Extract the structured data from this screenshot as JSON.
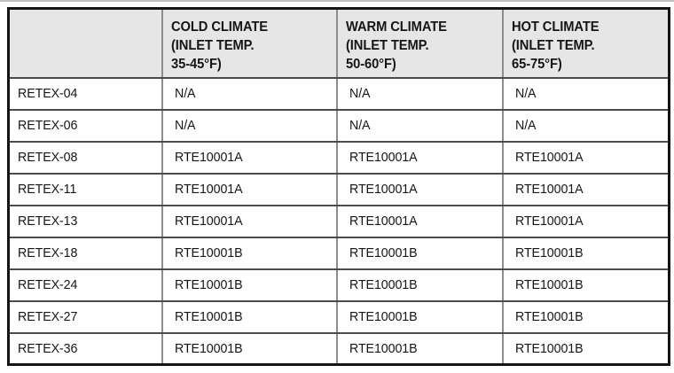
{
  "table": {
    "header": {
      "corner": "",
      "columns": [
        "COLD CLIMATE\n(INLET TEMP.\n35-45°F)",
        "WARM CLIMATE\n(INLET TEMP.\n50-60°F)",
        "HOT CLIMATE\n(INLET TEMP.\n65-75°F)"
      ]
    },
    "rows": [
      {
        "model": "RETEX-04",
        "cold": "N/A",
        "warm": "N/A",
        "hot": "N/A"
      },
      {
        "model": "RETEX-06",
        "cold": "N/A",
        "warm": "N/A",
        "hot": "N/A"
      },
      {
        "model": "RETEX-08",
        "cold": "RTE10001A",
        "warm": "RTE10001A",
        "hot": "RTE10001A"
      },
      {
        "model": "RETEX-11",
        "cold": "RTE10001A",
        "warm": "RTE10001A",
        "hot": "RTE10001A"
      },
      {
        "model": "RETEX-13",
        "cold": "RTE10001A",
        "warm": "RTE10001A",
        "hot": "RTE10001A"
      },
      {
        "model": "RETEX-18",
        "cold": "RTE10001B",
        "warm": "RTE10001B",
        "hot": "RTE10001B"
      },
      {
        "model": "RETEX-24",
        "cold": "RTE10001B",
        "warm": "RTE10001B",
        "hot": "RTE10001B"
      },
      {
        "model": "RETEX-27",
        "cold": "RTE10001B",
        "warm": "RTE10001B",
        "hot": "RTE10001B"
      },
      {
        "model": "RETEX-36",
        "cold": "RTE10001B",
        "warm": "RTE10001B",
        "hot": "RTE10001B"
      }
    ],
    "colors": {
      "page_bg": "#ffffff",
      "header_bg": "#e6e6e7",
      "outer_border": "#141414",
      "row_line": "#4a4a4a",
      "col_line": "#8d8d8f",
      "text": "#161616",
      "top_edge": "#bfbfc1"
    }
  }
}
